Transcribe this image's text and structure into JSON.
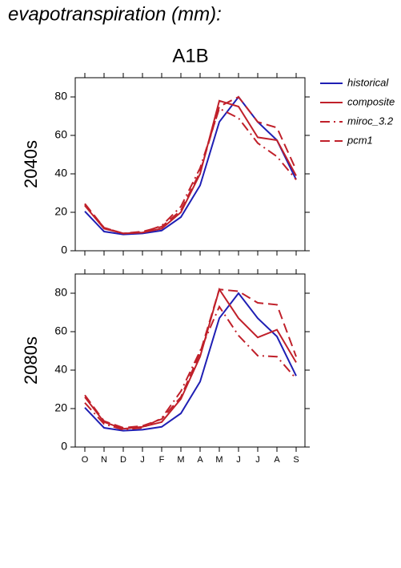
{
  "chart_data": [
    {
      "type": "line",
      "title": "evapotranspiration (mm):",
      "subtitle": "A1B",
      "ylabel": "2040s",
      "categories": [
        "O",
        "N",
        "D",
        "J",
        "F",
        "M",
        "A",
        "M",
        "J",
        "J",
        "A",
        "S"
      ],
      "ylim": [
        0,
        90
      ],
      "yticks": [
        0,
        20,
        40,
        60,
        80
      ],
      "legend": "right",
      "series": [
        {
          "name": "historical",
          "color": "#1f1fb4",
          "linestyle": "solid",
          "values": [
            20.5,
            10,
            8.5,
            9,
            10.5,
            17.5,
            34,
            67,
            80,
            67,
            57.5,
            37
          ]
        },
        {
          "name": "composite",
          "color": "#c0202a",
          "linestyle": "solid",
          "values": [
            23.5,
            11.5,
            9,
            9.5,
            11.5,
            20,
            40,
            78,
            75,
            59,
            57.5,
            39
          ]
        },
        {
          "name": "miroc_3.2",
          "color": "#c0202a",
          "linestyle": "dashdot",
          "values": [
            24,
            12,
            9,
            9.5,
            13,
            23,
            43,
            74,
            69,
            56,
            49,
            37
          ]
        },
        {
          "name": "pcm1",
          "color": "#c0202a",
          "linestyle": "dashed",
          "values": [
            24.5,
            12,
            9,
            10,
            12.5,
            21,
            41,
            75,
            80,
            67,
            64,
            42
          ]
        }
      ]
    },
    {
      "type": "line",
      "ylabel": "2080s",
      "categories": [
        "O",
        "N",
        "D",
        "J",
        "F",
        "M",
        "A",
        "M",
        "J",
        "J",
        "A",
        "S"
      ],
      "ylim": [
        0,
        90
      ],
      "yticks": [
        0,
        20,
        40,
        60,
        80
      ],
      "series": [
        {
          "color": "#1f1fb4",
          "linestyle": "solid",
          "values": [
            20.5,
            10,
            8.5,
            9,
            10.5,
            17.5,
            34,
            67,
            80,
            67,
            57.5,
            37
          ]
        },
        {
          "color": "#c0202a",
          "linestyle": "solid",
          "values": [
            26,
            13,
            9.5,
            10.5,
            13,
            25,
            47,
            82,
            67,
            57,
            61,
            44
          ]
        },
        {
          "color": "#c0202a",
          "linestyle": "dashdot",
          "values": [
            23,
            12,
            9,
            10,
            15,
            29,
            50,
            73,
            58,
            47.5,
            47,
            35.5
          ]
        },
        {
          "color": "#c0202a",
          "linestyle": "dashed",
          "values": [
            27,
            13.5,
            10,
            11,
            14.5,
            26,
            49,
            82,
            81,
            75,
            74,
            47
          ]
        }
      ]
    }
  ]
}
